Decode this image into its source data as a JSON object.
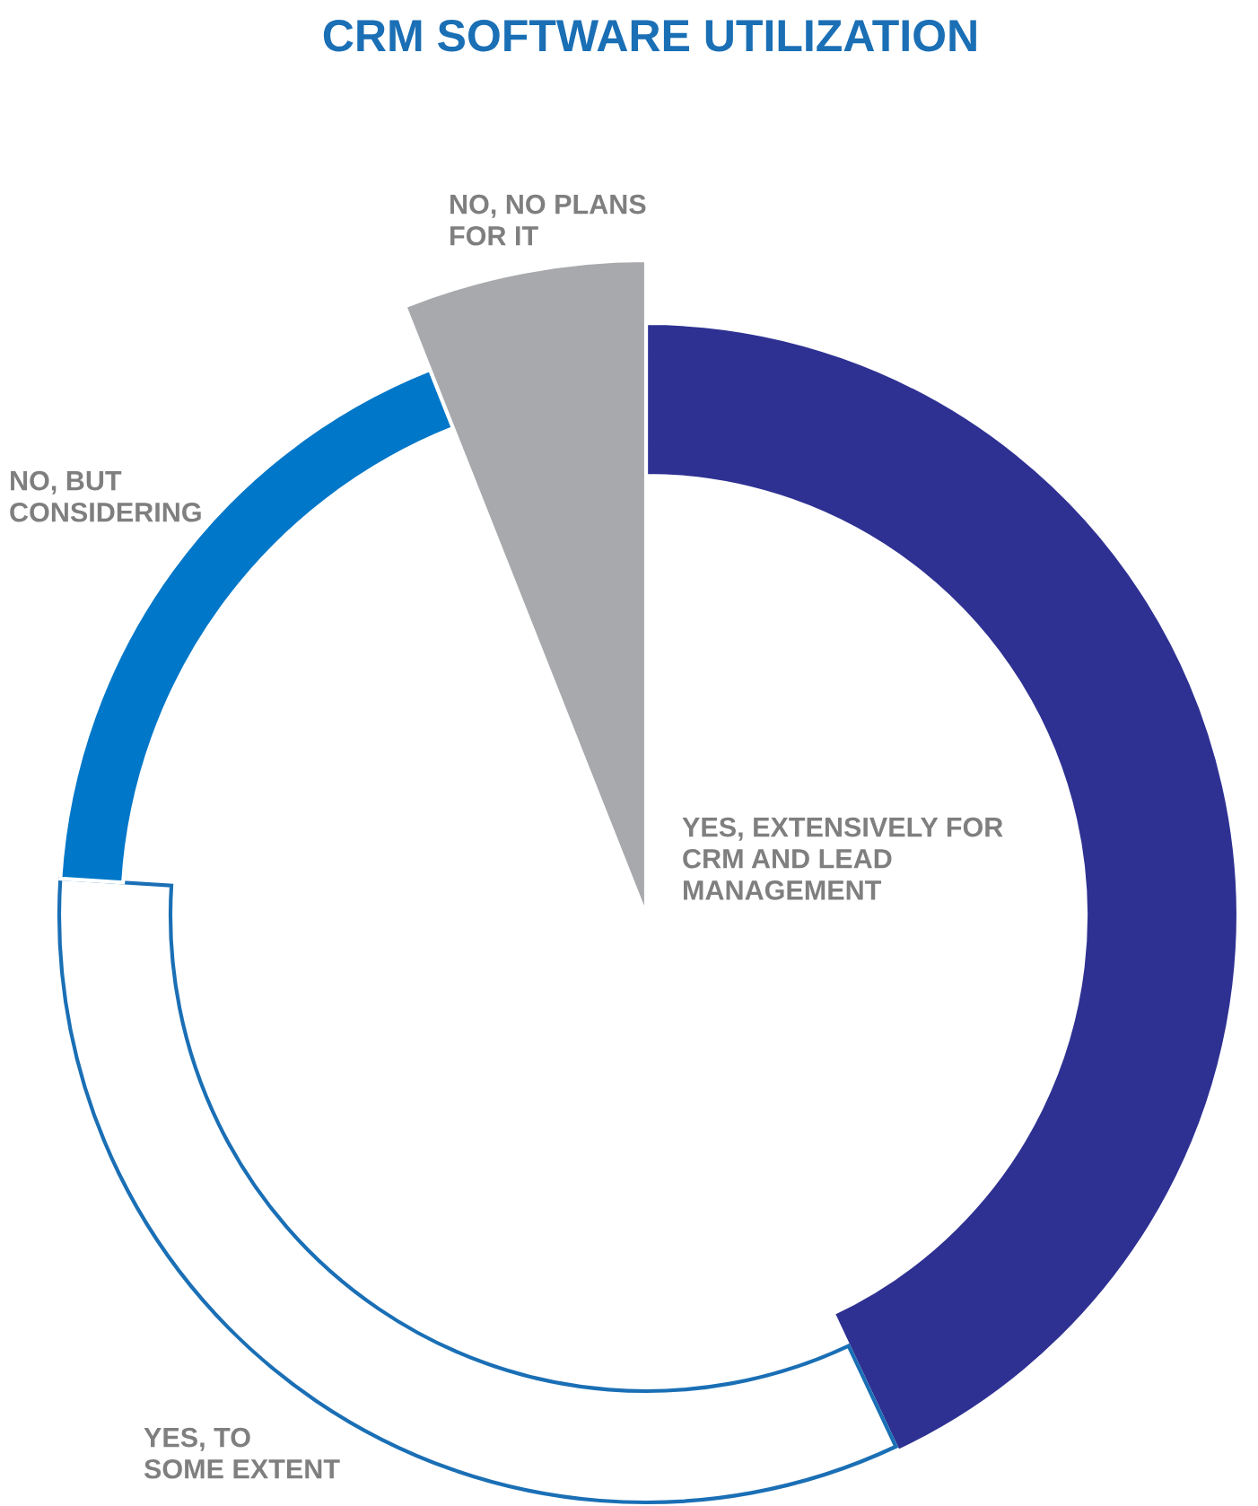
{
  "chart_data": {
    "type": "pie",
    "title": "CRM SOFTWARE UTILIZATION",
    "categories": [
      "YES, EXTENSIVELY FOR\nCRM AND LEAD\nMANAGEMENT",
      "YES, TO\nSOME EXTENT",
      "NO, BUT\nCONSIDERING",
      "NO, NO PLANS\nFOR IT"
    ],
    "values": [
      43,
      33,
      18,
      6
    ],
    "colors": [
      "#2e3192",
      "#ffffff",
      "#0077c8",
      "#a7a9ac"
    ],
    "legend": false
  }
}
